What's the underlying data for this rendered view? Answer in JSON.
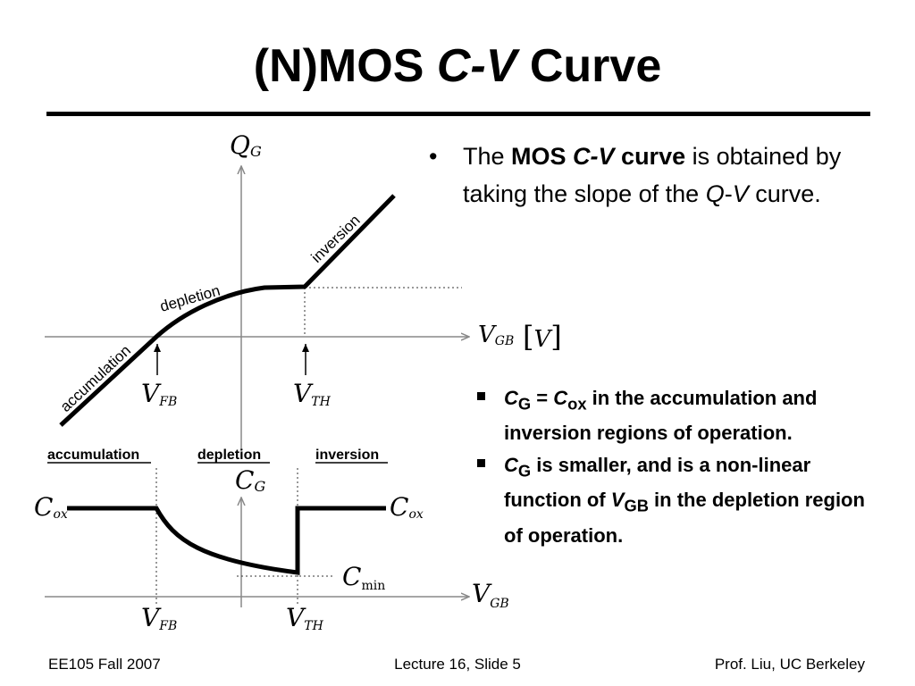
{
  "slide": {
    "title_a": "(N)MOS ",
    "title_b": "C-V",
    "title_c": " Curve"
  },
  "bullet_main": {
    "marker": "•",
    "t1": "The ",
    "t2": "MOS ",
    "t3": "C-V",
    "t4": " curve",
    "t5": " is obtained by taking the slope of the ",
    "t6": "Q",
    "t7": "-",
    "t8": "V",
    "t9": " curve."
  },
  "sub_1": {
    "c1": "C",
    "s1": "G",
    "eq": " = ",
    "c2": "C",
    "s2": "ox",
    "rest": " in the accumulation and inversion regions of operation."
  },
  "sub_2": {
    "c1": "C",
    "s1": "G",
    "t1": " is smaller, and is a non-linear function of ",
    "v": "V",
    "vs": "GB",
    "t2": " in the depletion region of operation."
  },
  "qv_diagram": {
    "y_axis_main": "Q",
    "y_axis_sub": "G",
    "x_axis_main": "V",
    "x_axis_sub": "GB",
    "x_unit_open": "[",
    "x_unit": "V",
    "x_unit_close": "]",
    "label_accumulation": "accumulation",
    "label_depletion": "depletion",
    "label_inversion": "inversion",
    "vfb_main": "V",
    "vfb_sub": "FB",
    "vth_main": "V",
    "vth_sub": "TH"
  },
  "cv_diagram": {
    "region_accumulation": "accumulation",
    "region_depletion": "depletion",
    "region_inversion": "inversion",
    "y_axis_main": "C",
    "y_axis_sub": "G",
    "x_axis_main": "V",
    "x_axis_sub": "GB",
    "cox_main": "C",
    "cox_sub": "ox",
    "cmin_main": "C",
    "cmin_sub": "min",
    "vfb_main": "V",
    "vfb_sub": "FB",
    "vth_main": "V",
    "vth_sub": "TH"
  },
  "footer": {
    "left": "EE105 Fall 2007",
    "center": "Lecture 16, Slide 5",
    "right": "Prof. Liu, UC Berkeley"
  },
  "colors": {
    "text": "#000000",
    "axis": "#888888",
    "region_underline": "#000000"
  }
}
